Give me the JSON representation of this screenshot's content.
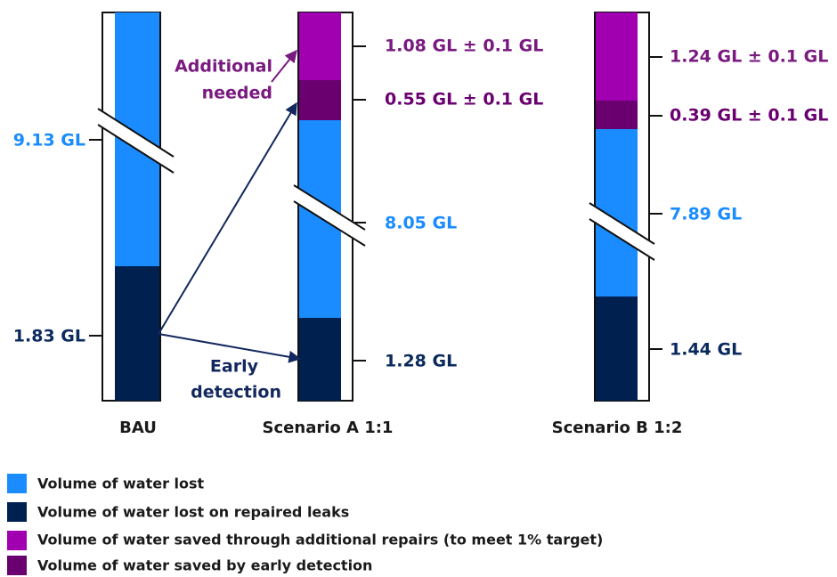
{
  "bars": [
    {
      "name": "BAU",
      "segments": [
        {
          "label": "9.13 GL"
        },
        {
          "label": "1.83 GL"
        }
      ]
    },
    {
      "name": "Scenario A 1:1",
      "segments": [
        {
          "label": "1.08 GL ± 0.1 GL"
        },
        {
          "label": "0.55 GL ± 0.1 GL"
        },
        {
          "label": "8.05 GL"
        },
        {
          "label": "1.28 GL"
        }
      ]
    },
    {
      "name": "Scenario B 1:2",
      "segments": [
        {
          "label": "1.24 GL ± 0.1 GL"
        },
        {
          "label": "0.39 GL ± 0.1 GL"
        },
        {
          "label": "7.89 GL"
        },
        {
          "label": "1.44 GL"
        }
      ]
    }
  ],
  "annotations": [
    {
      "lines": [
        "Additional",
        "needed"
      ]
    },
    {
      "lines": [
        "Early",
        "detection"
      ]
    }
  ],
  "legend": [
    "Volume of water lost",
    "Volume of water lost on repaired leaks",
    "Volume of water saved through additional repairs (to meet 1% target)",
    "Volume of water saved by early detection"
  ]
}
